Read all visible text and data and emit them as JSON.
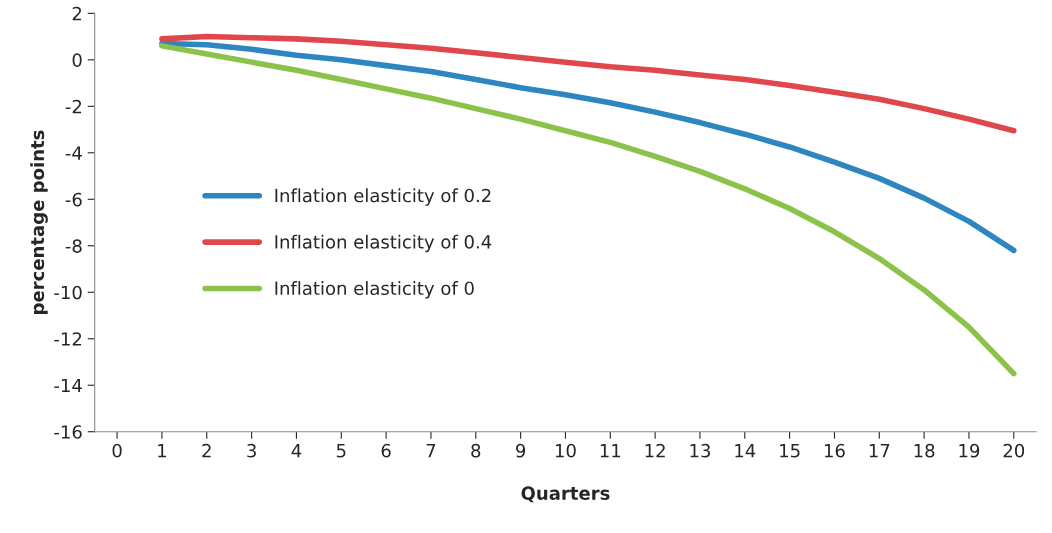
{
  "chart_data": {
    "type": "line",
    "xlabel": "Quarters",
    "ylabel": "percentage points",
    "categories": [
      "0",
      "1",
      "2",
      "3",
      "4",
      "5",
      "6",
      "7",
      "8",
      "9",
      "10",
      "11",
      "12",
      "13",
      "14",
      "15",
      "16",
      "17",
      "18",
      "19",
      "20"
    ],
    "series": [
      {
        "name": "Inflation elasticity of 0.2",
        "color": "#2e86c1",
        "values": [
          null,
          0.7,
          0.65,
          0.45,
          0.2,
          0.0,
          -0.25,
          -0.5,
          -0.85,
          -1.2,
          -1.5,
          -1.85,
          -2.25,
          -2.7,
          -3.2,
          -3.75,
          -4.4,
          -5.1,
          -5.95,
          -6.95,
          -8.2
        ]
      },
      {
        "name": "Inflation elasticity of 0.4",
        "color": "#e0474c",
        "values": [
          null,
          0.9,
          1.0,
          0.95,
          0.9,
          0.8,
          0.65,
          0.5,
          0.3,
          0.1,
          -0.1,
          -0.3,
          -0.45,
          -0.65,
          -0.85,
          -1.1,
          -1.4,
          -1.7,
          -2.1,
          -2.55,
          -3.05
        ]
      },
      {
        "name": "Inflation elasticity of 0",
        "color": "#8bc34a",
        "values": [
          null,
          0.6,
          0.25,
          -0.1,
          -0.45,
          -0.85,
          -1.25,
          -1.65,
          -2.1,
          -2.55,
          -3.05,
          -3.55,
          -4.15,
          -4.8,
          -5.55,
          -6.4,
          -7.4,
          -8.55,
          -9.9,
          -11.5,
          -13.5
        ]
      }
    ],
    "ylim": [
      -16,
      2
    ],
    "yticks": [
      -16,
      -14,
      -12,
      -10,
      -8,
      -6,
      -4,
      -2,
      0,
      2
    ],
    "grid": false,
    "legend": "center left",
    "marker": "none",
    "line_style": "solid"
  }
}
